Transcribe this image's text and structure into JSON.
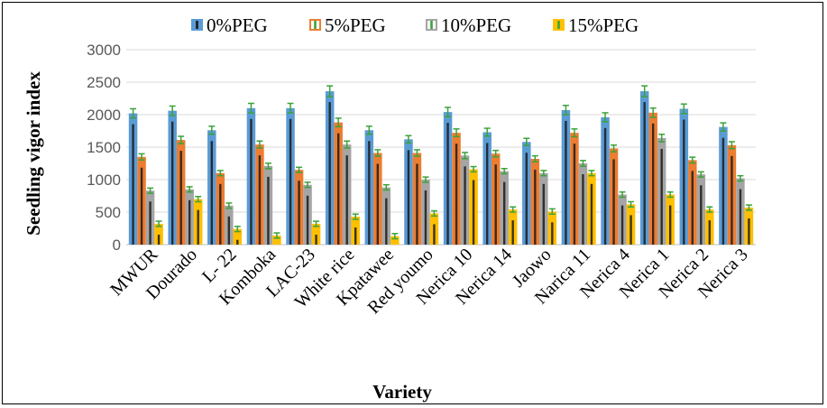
{
  "chart_data": {
    "type": "bar",
    "xlabel": "Variety",
    "ylabel": "Seedling vigor index",
    "ylim": [
      0,
      3000
    ],
    "ytick_step": 500,
    "grid": true,
    "legend_position": "top",
    "categories": [
      "MWUR",
      "Dourado",
      "L- 22",
      "Komboka",
      "LAC-23",
      "White rice",
      "Kpatawee",
      "Red youmo",
      "Nerica 10",
      "Nerica 14",
      "Jaowo",
      "Narica 11",
      "Nerica 4",
      "Nerica 1",
      "Nerica 2",
      "Nerica 3"
    ],
    "series": [
      {
        "name": "0%PEG",
        "color": "#5b9bd5",
        "values": [
          2020,
          2060,
          1760,
          2100,
          2100,
          2360,
          1760,
          1620,
          2040,
          1730,
          1580,
          2070,
          1960,
          2360,
          2090,
          1810
        ]
      },
      {
        "name": "5%PEG",
        "color": "#ed7d31",
        "values": [
          1350,
          1610,
          1100,
          1540,
          1150,
          1880,
          1410,
          1410,
          1720,
          1400,
          1320,
          1720,
          1480,
          2030,
          1300,
          1530
        ]
      },
      {
        "name": "10%PEG",
        "color": "#a5a5a5",
        "values": [
          830,
          850,
          600,
          1210,
          920,
          1540,
          880,
          1000,
          1370,
          1130,
          1100,
          1250,
          770,
          1640,
          1080,
          1020
        ]
      },
      {
        "name": "15%PEG",
        "color": "#ffc000",
        "values": [
          320,
          700,
          240,
          140,
          320,
          430,
          130,
          480,
          1160,
          540,
          510,
          1100,
          620,
          770,
          540,
          570
        ]
      }
    ]
  }
}
